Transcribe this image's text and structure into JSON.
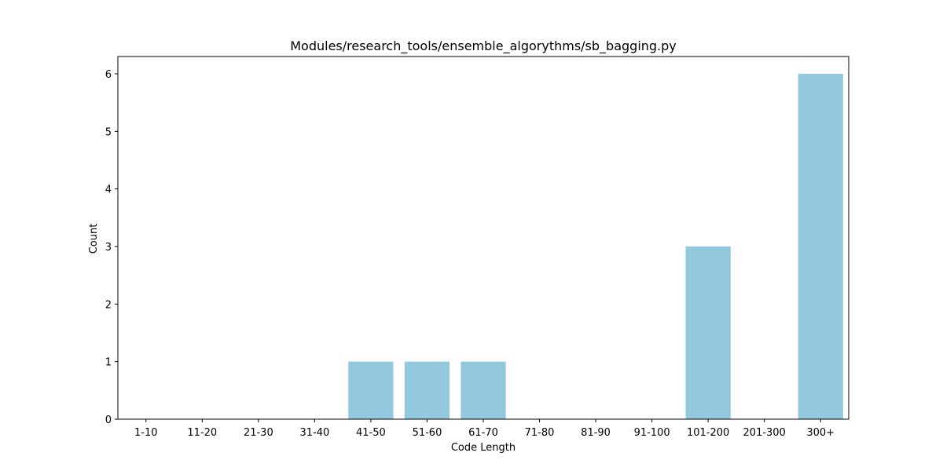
{
  "chart_data": {
    "type": "bar",
    "title": "Modules/research_tools/ensemble_algorythms/sb_bagging.py",
    "xlabel": "Code Length",
    "ylabel": "Count",
    "categories": [
      "1-10",
      "11-20",
      "21-30",
      "31-40",
      "41-50",
      "51-60",
      "61-70",
      "71-80",
      "81-90",
      "91-100",
      "101-200",
      "201-300",
      "300+"
    ],
    "values": [
      0,
      0,
      0,
      0,
      1,
      1,
      1,
      0,
      0,
      0,
      3,
      0,
      6
    ],
    "ylim": [
      0,
      6.3
    ],
    "yticks": [
      0,
      1,
      2,
      3,
      4,
      5,
      6
    ],
    "bar_color": "#92c8dd",
    "grid": false,
    "legend": "none"
  }
}
